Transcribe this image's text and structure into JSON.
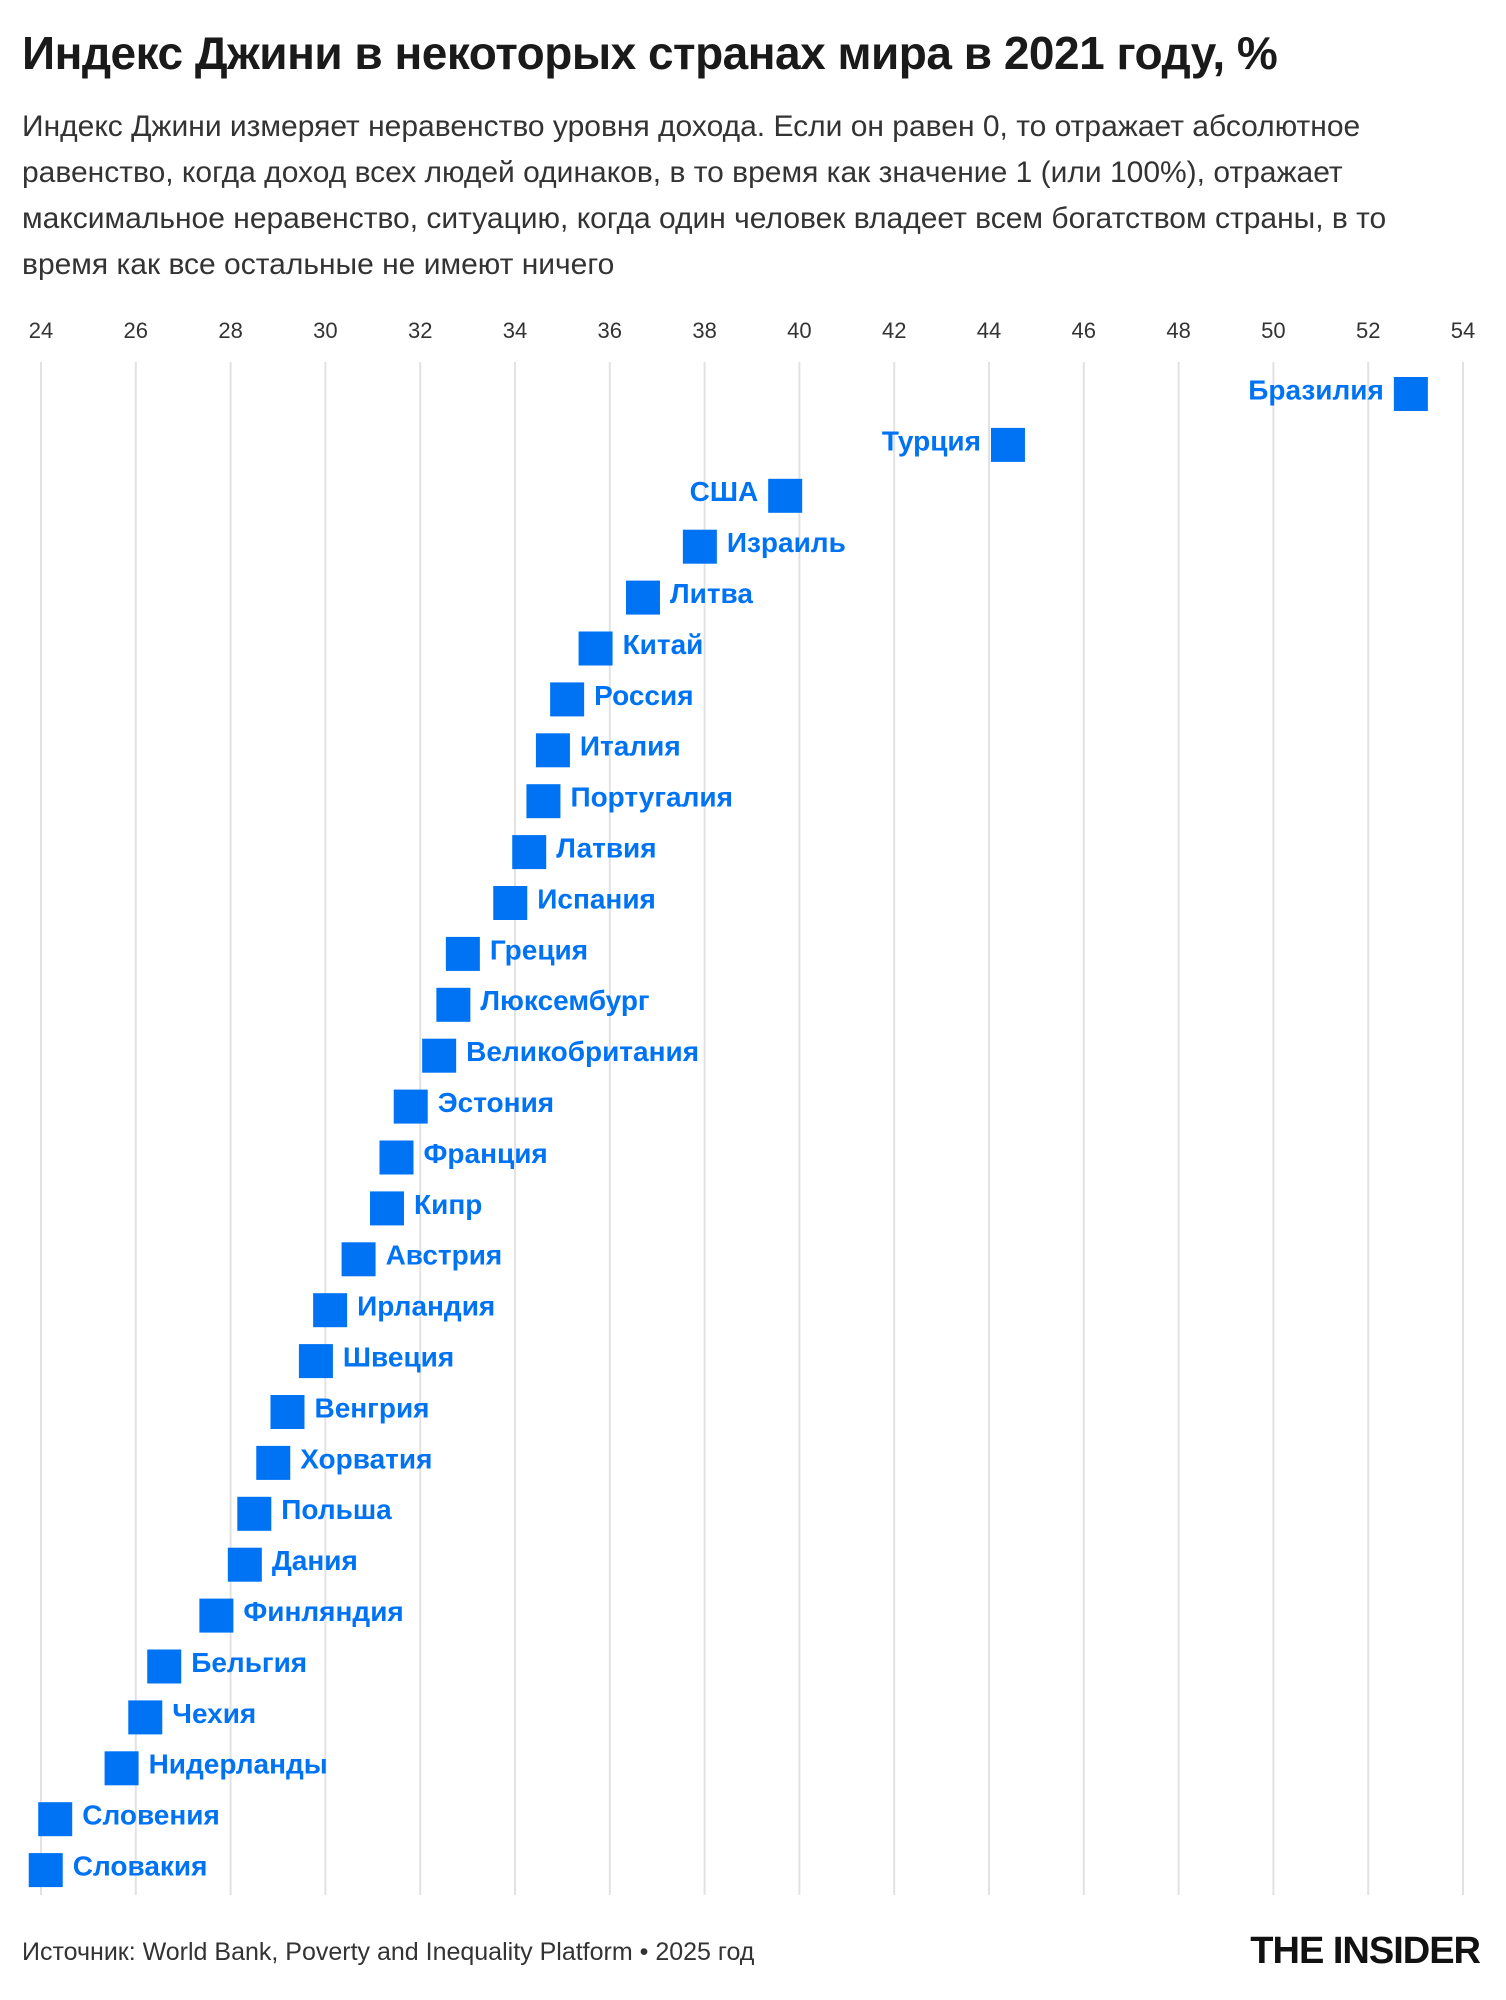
{
  "chart_data": {
    "type": "dot",
    "title": "Индекс Джини в некоторых странах мира в 2021 году, %",
    "subtitle": "Индекс Джини измеряет неравенство уровня дохода. Если он равен 0, то отражает абсолютное равенство, когда доход всех людей одинаков, в то время как значение 1 (или 100%), отражает максимальное неравенство, ситуацию, когда один человек владеет всем богатством страны, в то время как все остальные не имеют ничего",
    "categories": [
      "Бразилия",
      "Турция",
      "США",
      "Израиль",
      "Литва",
      "Китай",
      "Россия",
      "Италия",
      "Португалия",
      "Латвия",
      "Испания",
      "Греция",
      "Люксембург",
      "Великобритания",
      "Эстония",
      "Франция",
      "Кипр",
      "Австрия",
      "Ирландия",
      "Швеция",
      "Венгрия",
      "Хорватия",
      "Польша",
      "Дания",
      "Финляндия",
      "Бельгия",
      "Чехия",
      "Нидерланды",
      "Словения",
      "Словакия"
    ],
    "values": [
      52.9,
      44.4,
      39.7,
      37.9,
      36.7,
      35.7,
      35.1,
      34.8,
      34.6,
      34.3,
      33.9,
      32.9,
      32.7,
      32.4,
      31.8,
      31.5,
      31.3,
      30.7,
      30.1,
      29.8,
      29.2,
      28.9,
      28.5,
      28.3,
      27.7,
      26.6,
      26.2,
      25.7,
      24.3,
      24.1
    ],
    "color": "#0073f5",
    "xlim": [
      24,
      54
    ],
    "xticks": [
      24,
      26,
      28,
      30,
      32,
      34,
      36,
      38,
      40,
      42,
      44,
      46,
      48,
      50,
      52,
      54
    ],
    "grid": true,
    "source": "Источник: World Bank, Poverty and Inequality Platform • 2025 год",
    "logo": "THE INSIDER"
  }
}
